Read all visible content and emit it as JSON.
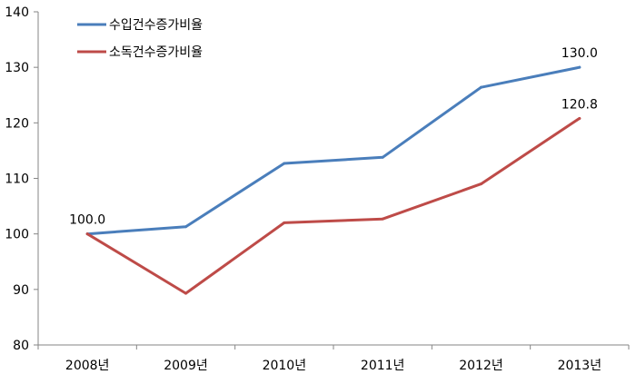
{
  "chart_data": {
    "type": "line",
    "categories": [
      "2008년",
      "2009년",
      "2010년",
      "2011년",
      "2012년",
      "2013년"
    ],
    "ylim": [
      80,
      140
    ],
    "yticks": [
      80,
      90,
      100,
      110,
      120,
      130,
      140
    ],
    "grid": false,
    "legend_position": "top-left",
    "series": [
      {
        "name": "수입건수증가비율",
        "color": "#4a7ebb",
        "values": [
          100.0,
          101.3,
          112.7,
          113.8,
          126.4,
          130.0
        ]
      },
      {
        "name": "소독건수증가비율",
        "color": "#be4b48",
        "values": [
          100.0,
          89.3,
          102.0,
          102.7,
          109.0,
          120.8
        ]
      }
    ],
    "data_labels": [
      {
        "series": 0,
        "index": 0,
        "text": "100.0"
      },
      {
        "series": 0,
        "index": 5,
        "text": "130.0"
      },
      {
        "series": 1,
        "index": 5,
        "text": "120.8"
      }
    ]
  }
}
